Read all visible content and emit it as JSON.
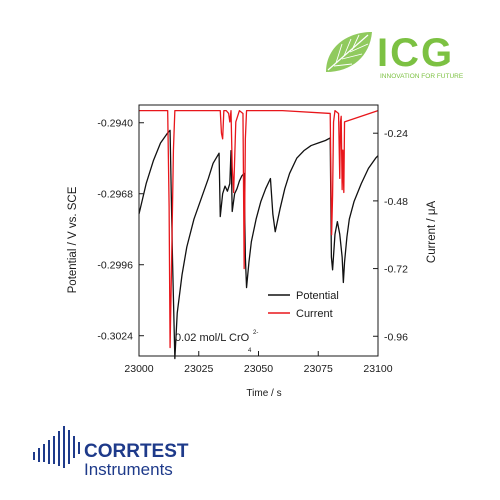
{
  "logos": {
    "icg": {
      "name": "ICG",
      "tagline": "INNOVATION FOR FUTURE",
      "color": "#7cc142",
      "icon": "leaf-icon"
    },
    "corrtest": {
      "line1": "CORRTEST",
      "line2": "Instruments",
      "color": "#1e3a8a",
      "icon": "signal-waves-icon"
    }
  },
  "chart_data": {
    "type": "line",
    "xlabel": "Time / s",
    "ylabel_left": "Potential / V vs. SCE",
    "ylabel_right": "Current / μA",
    "xlim": [
      23000,
      23100
    ],
    "xticks": [
      23000,
      23025,
      23050,
      23075,
      23100
    ],
    "xtick_labels": [
      "23000",
      "23025",
      "23050",
      "23075",
      "23100"
    ],
    "ylim_left": [
      -0.3032,
      -0.2933
    ],
    "yticks_left": [
      -0.294,
      -0.2968,
      -0.2996,
      -0.3024
    ],
    "ytick_labels_left": [
      "-0.2940",
      "-0.2968",
      "-0.2996",
      "-0.3024"
    ],
    "ylim_right": [
      -1.03,
      -0.14
    ],
    "yticks_right": [
      -0.24,
      -0.48,
      -0.72,
      -0.96
    ],
    "ytick_labels_right": [
      "-0.24",
      "-0.48",
      "-0.72",
      "-0.96"
    ],
    "grid": false,
    "legend_position": "lower-right",
    "annotation": {
      "text": "0.02 mol/L CrO",
      "superscript": "2-",
      "subscript": "4"
    },
    "series": [
      {
        "name": "Potential",
        "axis": "left",
        "color": "#111111",
        "x": [
          23000,
          23003,
          23006,
          23009,
          23012,
          23013,
          23014,
          23015,
          23016,
          23018,
          23020,
          23023,
          23026,
          23029,
          23031,
          23033.5,
          23034,
          23035,
          23036,
          23037,
          23038,
          23038.5,
          23039,
          23040,
          23041,
          23042,
          23043,
          23044,
          23044.5,
          23045,
          23046,
          23047,
          23049,
          23051,
          23053,
          23055,
          23056,
          23057,
          23059,
          23061,
          23063,
          23066,
          23069,
          23072,
          23075,
          23078,
          23080,
          23080.5,
          23081,
          23082,
          23083,
          23084,
          23085,
          23085.5,
          23086,
          23087,
          23088,
          23090,
          23093,
          23096,
          23099,
          23100
        ],
        "values": [
          -0.2976,
          -0.2964,
          -0.2955,
          -0.2948,
          -0.2944,
          -0.2943,
          -0.2993,
          -0.3033,
          -0.3015,
          -0.3,
          -0.2989,
          -0.2978,
          -0.297,
          -0.2962,
          -0.2956,
          -0.2952,
          -0.2977,
          -0.2968,
          -0.2965,
          -0.2967,
          -0.2964,
          -0.2951,
          -0.2975,
          -0.2968,
          -0.2966,
          -0.2963,
          -0.2961,
          -0.296,
          -0.2993,
          -0.3005,
          -0.2995,
          -0.2987,
          -0.2978,
          -0.2971,
          -0.2966,
          -0.2962,
          -0.2976,
          -0.2983,
          -0.2974,
          -0.2966,
          -0.296,
          -0.2954,
          -0.2951,
          -0.2949,
          -0.2948,
          -0.2947,
          -0.2946,
          -0.2993,
          -0.2998,
          -0.2984,
          -0.2979,
          -0.2984,
          -0.2993,
          -0.3003,
          -0.2995,
          -0.2985,
          -0.2978,
          -0.2971,
          -0.2964,
          -0.2958,
          -0.2954,
          -0.2953
        ]
      },
      {
        "name": "Current",
        "axis": "right",
        "color": "#e8161b",
        "x": [
          23000,
          23012,
          23012.6,
          23013,
          23013.6,
          23014.4,
          23015,
          23034,
          23034.5,
          23035,
          23035.5,
          23036.5,
          23037.5,
          23038,
          23038.5,
          23039,
          23039.6,
          23040.5,
          23042,
          23043.5,
          23044,
          23044.5,
          23045,
          23046,
          23060,
          23080,
          23080.6,
          23081,
          23081.4,
          23082,
          23083.5,
          23084,
          23084.3,
          23084.6,
          23085,
          23085.3,
          23085.7,
          23086,
          23100
        ],
        "values": [
          -0.16,
          -0.16,
          -0.5,
          -1.0,
          -0.72,
          -0.3,
          -0.16,
          -0.16,
          -0.24,
          -0.26,
          -0.16,
          -0.16,
          -0.17,
          -0.2,
          -0.16,
          -0.36,
          -0.45,
          -0.2,
          -0.16,
          -0.17,
          -0.72,
          -0.26,
          -0.16,
          -0.16,
          -0.16,
          -0.17,
          -0.6,
          -0.46,
          -0.2,
          -0.16,
          -0.17,
          -0.4,
          -0.2,
          -0.18,
          -0.44,
          -0.3,
          -0.45,
          -0.2,
          -0.16
        ]
      }
    ]
  }
}
